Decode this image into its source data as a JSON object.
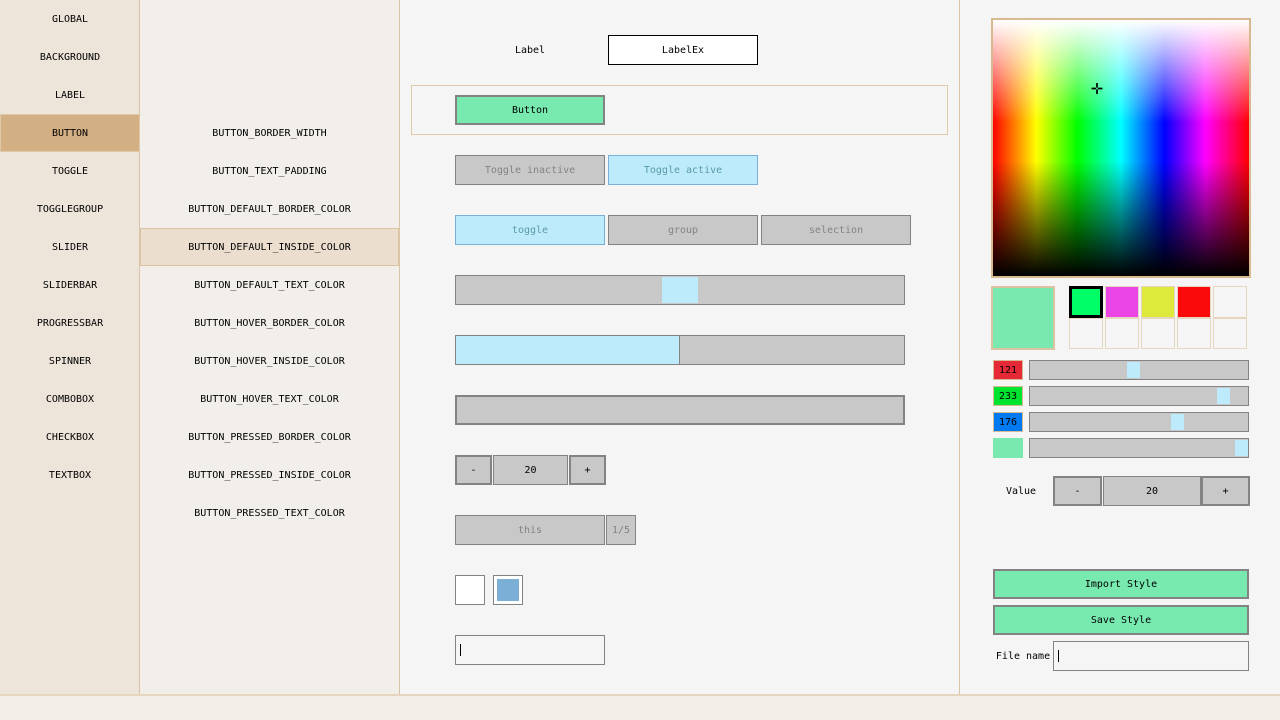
{
  "categories": [
    {
      "label": "GLOBAL"
    },
    {
      "label": "BACKGROUND"
    },
    {
      "label": "LABEL"
    },
    {
      "label": "BUTTON",
      "selected": true
    },
    {
      "label": "TOGGLE"
    },
    {
      "label": "TOGGLEGROUP"
    },
    {
      "label": "SLIDER"
    },
    {
      "label": "SLIDERBAR"
    },
    {
      "label": "PROGRESSBAR"
    },
    {
      "label": "SPINNER"
    },
    {
      "label": "COMBOBOX"
    },
    {
      "label": "CHECKBOX"
    },
    {
      "label": "TEXTBOX"
    }
  ],
  "properties": [
    {
      "label": "BUTTON_BORDER_WIDTH"
    },
    {
      "label": "BUTTON_TEXT_PADDING"
    },
    {
      "label": "BUTTON_DEFAULT_BORDER_COLOR"
    },
    {
      "label": "BUTTON_DEFAULT_INSIDE_COLOR",
      "selected": true
    },
    {
      "label": "BUTTON_DEFAULT_TEXT_COLOR"
    },
    {
      "label": "BUTTON_HOVER_BORDER_COLOR"
    },
    {
      "label": "BUTTON_HOVER_INSIDE_COLOR"
    },
    {
      "label": "BUTTON_HOVER_TEXT_COLOR"
    },
    {
      "label": "BUTTON_PRESSED_BORDER_COLOR"
    },
    {
      "label": "BUTTON_PRESSED_INSIDE_COLOR"
    },
    {
      "label": "BUTTON_PRESSED_TEXT_COLOR"
    }
  ],
  "preview": {
    "label": "Label",
    "label_ex": "LabelEx",
    "button": "Button",
    "toggle_inactive": "Toggle inactive",
    "toggle_active": "Toggle active",
    "toggle_group": [
      "toggle",
      "group",
      "selection"
    ],
    "toggle_group_active": 0,
    "slider_value": 0.5,
    "sliderbar_value": 0.5,
    "progress_value": 0,
    "spinner": {
      "minus": "-",
      "value": "20",
      "plus": "+"
    },
    "combo": {
      "value": "this",
      "count": "1/5"
    },
    "checkbox1": false,
    "checkbox2": true,
    "textbox": ""
  },
  "picker": {
    "current_color": "#79e9b0",
    "palette": [
      "#00ff66",
      "#ec45e6",
      "#ddea3c",
      "#fa0a0a",
      "",
      "",
      "",
      "",
      "",
      ""
    ],
    "r": "121",
    "g": "233",
    "b": "176",
    "a": 255,
    "value_label": "Value",
    "value": "20",
    "minus": "-",
    "plus": "+",
    "import_label": "Import Style",
    "save_label": "Save Style",
    "file_name_label": "File name",
    "file_name": ""
  },
  "colors": {
    "accent": "#78eab0",
    "selected_category": "#d3b083",
    "toggle_active": "#bdebfc",
    "checkbox_fill": "#7bafd6"
  }
}
